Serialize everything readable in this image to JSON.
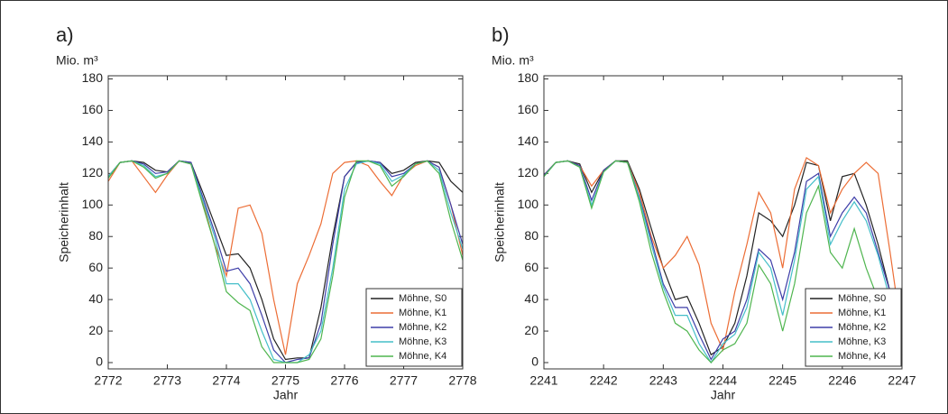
{
  "chart_data": [
    {
      "type": "line",
      "label": "a)",
      "y_unit": "Mio. m³",
      "ylabel": "Speicherinhalt",
      "xlabel": "Jahr",
      "x": [
        2772.0,
        2772.2,
        2772.4,
        2772.6,
        2772.8,
        2773.0,
        2773.2,
        2773.4,
        2773.6,
        2773.8,
        2774.0,
        2774.2,
        2774.4,
        2774.6,
        2774.8,
        2775.0,
        2775.2,
        2775.4,
        2775.6,
        2775.8,
        2776.0,
        2776.2,
        2776.4,
        2776.6,
        2776.8,
        2777.0,
        2777.2,
        2777.4,
        2777.6,
        2777.8,
        2778.0
      ],
      "series": [
        {
          "name": "Möhne, S0",
          "color": "#222222",
          "values": [
            118,
            127,
            128,
            127,
            122,
            121,
            128,
            127,
            108,
            88,
            68,
            69,
            60,
            40,
            15,
            2,
            3,
            3,
            35,
            80,
            118,
            127,
            128,
            127,
            120,
            122,
            127,
            128,
            127,
            115,
            108
          ]
        },
        {
          "name": "Möhne, K1",
          "color": "#ec6d35",
          "values": [
            115,
            127,
            128,
            118,
            108,
            119,
            128,
            126,
            102,
            75,
            55,
            98,
            100,
            82,
            40,
            5,
            50,
            68,
            88,
            120,
            127,
            128,
            125,
            115,
            106,
            119,
            125,
            128,
            124,
            100,
            68
          ]
        },
        {
          "name": "Möhne, K2",
          "color": "#3e3ea8",
          "values": [
            118,
            127,
            128,
            126,
            120,
            121,
            128,
            127,
            105,
            83,
            58,
            60,
            50,
            30,
            8,
            0,
            2,
            3,
            25,
            75,
            118,
            127,
            128,
            127,
            118,
            120,
            126,
            128,
            124,
            100,
            75
          ]
        },
        {
          "name": "Möhne, K3",
          "color": "#45bfc9",
          "values": [
            118,
            127,
            128,
            125,
            118,
            120,
            128,
            126,
            103,
            80,
            50,
            50,
            40,
            20,
            2,
            0,
            0,
            5,
            20,
            60,
            110,
            126,
            128,
            126,
            115,
            119,
            126,
            128,
            122,
            95,
            72
          ]
        },
        {
          "name": "Möhne, K4",
          "color": "#4fb54f",
          "values": [
            117,
            127,
            128,
            124,
            117,
            120,
            128,
            126,
            100,
            75,
            45,
            38,
            33,
            10,
            0,
            0,
            0,
            2,
            15,
            55,
            105,
            128,
            128,
            125,
            112,
            118,
            126,
            128,
            120,
            90,
            65
          ]
        }
      ],
      "xlim": [
        2772,
        2778
      ],
      "xticks": [
        2772,
        2773,
        2774,
        2775,
        2776,
        2777,
        2778
      ],
      "ylim": [
        -4,
        182
      ],
      "yticks": [
        0,
        20,
        40,
        60,
        80,
        100,
        120,
        140,
        160,
        180
      ],
      "legend": "lower right"
    },
    {
      "type": "line",
      "label": "b)",
      "y_unit": "Mio. m³",
      "ylabel": "Speicherinhalt",
      "xlabel": "Jahr",
      "x": [
        2241.0,
        2241.2,
        2241.4,
        2241.6,
        2241.8,
        2242.0,
        2242.2,
        2242.4,
        2242.6,
        2242.8,
        2243.0,
        2243.2,
        2243.4,
        2243.6,
        2243.8,
        2244.0,
        2244.2,
        2244.4,
        2244.6,
        2244.8,
        2245.0,
        2245.2,
        2245.4,
        2245.6,
        2245.8,
        2246.0,
        2246.2,
        2246.4,
        2246.6,
        2246.8,
        2247.0
      ],
      "series": [
        {
          "name": "Möhne, S0",
          "color": "#222222",
          "values": [
            119,
            127,
            128,
            126,
            108,
            122,
            128,
            128,
            110,
            85,
            60,
            40,
            42,
            25,
            5,
            10,
            25,
            55,
            95,
            90,
            80,
            100,
            127,
            125,
            90,
            118,
            120,
            100,
            75,
            45,
            5
          ]
        },
        {
          "name": "Möhne, K1",
          "color": "#ec6d35",
          "values": [
            119,
            127,
            128,
            125,
            112,
            122,
            128,
            127,
            108,
            80,
            60,
            68,
            80,
            62,
            25,
            8,
            45,
            75,
            108,
            95,
            60,
            110,
            130,
            125,
            95,
            110,
            120,
            127,
            120,
            70,
            17
          ]
        },
        {
          "name": "Möhne, K2",
          "color": "#3e3ea8",
          "values": [
            119,
            127,
            128,
            125,
            103,
            122,
            128,
            127,
            105,
            78,
            50,
            35,
            35,
            18,
            2,
            15,
            20,
            40,
            72,
            65,
            40,
            70,
            115,
            120,
            80,
            95,
            105,
            95,
            70,
            45,
            15
          ]
        },
        {
          "name": "Möhne, K3",
          "color": "#45bfc9",
          "values": [
            118,
            127,
            128,
            124,
            100,
            121,
            128,
            127,
            104,
            75,
            48,
            30,
            30,
            12,
            0,
            12,
            18,
            35,
            70,
            60,
            30,
            65,
            110,
            118,
            75,
            90,
            102,
            90,
            68,
            40,
            12
          ]
        },
        {
          "name": "Möhne, K4",
          "color": "#4fb54f",
          "values": [
            118,
            127,
            128,
            124,
            98,
            121,
            128,
            127,
            102,
            70,
            45,
            25,
            20,
            8,
            0,
            8,
            12,
            25,
            62,
            50,
            20,
            50,
            95,
            112,
            70,
            60,
            85,
            60,
            40,
            25,
            0
          ]
        }
      ],
      "xlim": [
        2241,
        2247
      ],
      "xticks": [
        2241,
        2242,
        2243,
        2244,
        2245,
        2246,
        2247
      ],
      "ylim": [
        -4,
        182
      ],
      "yticks": [
        0,
        20,
        40,
        60,
        80,
        100,
        120,
        140,
        160,
        180
      ],
      "legend": "lower right"
    }
  ]
}
